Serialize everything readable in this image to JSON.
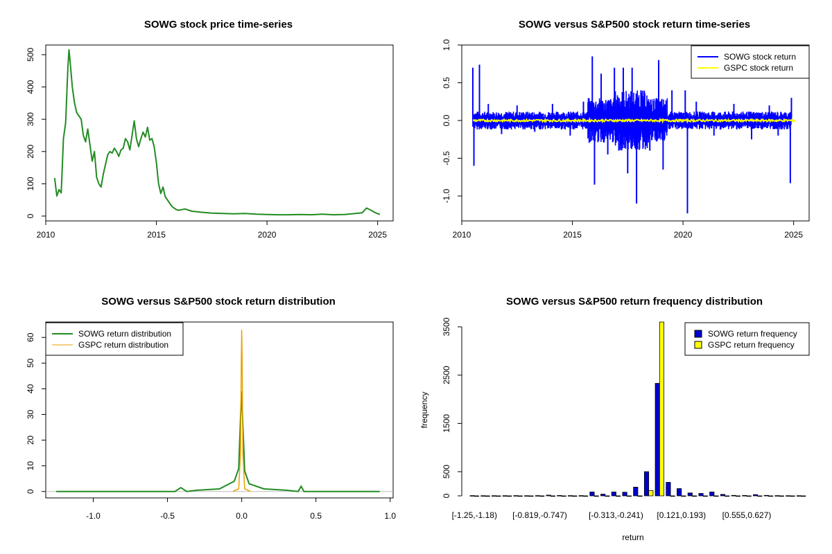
{
  "colors": {
    "sowg_price": "#228B22",
    "sowg_return": "#0000FF",
    "gspc_return": "#FFFF00",
    "sowg_density": "#228B22",
    "gspc_density": "#E6A100",
    "sowg_bar": "#0000CD",
    "gspc_bar": "#FFFF00"
  },
  "chart_data": [
    {
      "type": "line",
      "title": "SOWG stock price time-series",
      "xlabel": "",
      "ylabel": "",
      "xlim": [
        2010.0,
        2025.7
      ],
      "ylim": [
        -15,
        530
      ],
      "xticks": [
        2010,
        2015,
        2020,
        2025
      ],
      "yticks": [
        0,
        100,
        200,
        300,
        400,
        500
      ],
      "series": [
        {
          "x": [
            2010.4,
            2010.5,
            2010.6,
            2010.7,
            2010.8,
            2010.9,
            2011.0,
            2011.05,
            2011.1,
            2011.2,
            2011.3,
            2011.4,
            2011.5,
            2011.6,
            2011.7,
            2011.8,
            2011.9,
            2012.0,
            2012.1,
            2012.2,
            2012.3,
            2012.4,
            2012.5,
            2012.6,
            2012.7,
            2012.8,
            2012.9,
            2013.0,
            2013.1,
            2013.2,
            2013.3,
            2013.4,
            2013.5,
            2013.6,
            2013.7,
            2013.8,
            2013.9,
            2014.0,
            2014.1,
            2014.2,
            2014.3,
            2014.4,
            2014.5,
            2014.6,
            2014.7,
            2014.8,
            2014.9,
            2015.0,
            2015.1,
            2015.2,
            2015.3,
            2015.4,
            2015.5,
            2015.6,
            2015.7,
            2015.8,
            2015.9,
            2016.0,
            2016.3,
            2016.6,
            2017.0,
            2017.5,
            2018.0,
            2018.5,
            2019.0,
            2019.5,
            2020.0,
            2020.5,
            2021.0,
            2021.5,
            2022.0,
            2022.5,
            2023.0,
            2023.5,
            2024.0,
            2024.3,
            2024.5,
            2024.7,
            2024.9,
            2025.1
          ],
          "y": [
            118,
            62,
            82,
            72,
            240,
            290,
            460,
            515,
            480,
            400,
            350,
            320,
            310,
            300,
            250,
            230,
            270,
            220,
            170,
            200,
            120,
            100,
            90,
            130,
            160,
            190,
            200,
            195,
            210,
            200,
            185,
            205,
            210,
            240,
            230,
            205,
            250,
            295,
            240,
            215,
            240,
            260,
            245,
            275,
            235,
            240,
            215,
            165,
            100,
            70,
            90,
            60,
            50,
            40,
            30,
            25,
            20,
            18,
            22,
            15,
            12,
            9,
            8,
            7,
            8,
            6,
            5,
            4,
            4,
            5,
            4,
            6,
            4,
            5,
            8,
            10,
            25,
            18,
            10,
            5
          ]
        }
      ]
    },
    {
      "type": "line",
      "title": "SOWG versus S&P500 stock return time-series",
      "xlabel": "",
      "ylabel": "",
      "xlim": [
        2010.0,
        2025.7
      ],
      "ylim": [
        -1.33,
        1.0
      ],
      "xticks": [
        2010,
        2015,
        2020,
        2025
      ],
      "yticks": [
        -1.0,
        -0.5,
        0.0,
        0.5,
        1.0
      ],
      "ytick_labels": [
        "-1.0",
        "-0.5",
        "0.0",
        "0.5",
        "1.0"
      ],
      "legend": {
        "position": "top-right",
        "entries": [
          "SOWG stock return",
          "GSPC stock return"
        ]
      },
      "series": [
        {
          "name": "SOWG stock return",
          "x": [
            2010.5,
            2010.55,
            2010.8,
            2011.2,
            2011.8,
            2012.5,
            2013.3,
            2014.1,
            2014.9,
            2015.5,
            2015.9,
            2016.0,
            2016.3,
            2016.6,
            2016.9,
            2017.1,
            2017.3,
            2017.5,
            2017.7,
            2017.9,
            2018.1,
            2018.5,
            2018.9,
            2019.1,
            2019.5,
            2020.1,
            2020.2,
            2020.6,
            2021.4,
            2022.3,
            2023.1,
            2023.9,
            2024.3,
            2024.85,
            2024.9
          ],
          "y": [
            0.7,
            -0.6,
            0.74,
            0.22,
            -0.18,
            0.2,
            -0.15,
            0.22,
            -0.2,
            0.25,
            0.85,
            -0.85,
            0.62,
            -0.45,
            0.7,
            -0.4,
            0.7,
            -0.7,
            0.7,
            -1.1,
            0.4,
            -0.4,
            0.8,
            -0.65,
            0.4,
            0.4,
            -1.23,
            0.25,
            -0.2,
            0.22,
            -0.25,
            0.2,
            -0.2,
            -0.83,
            0.3
          ]
        },
        {
          "name": "GSPC stock return",
          "x": [
            2010.5,
            2025.1
          ],
          "y": [
            0.0,
            0.0
          ]
        }
      ]
    },
    {
      "type": "line",
      "title": "SOWG versus S&P500 stock return distribution",
      "xlabel": "",
      "ylabel": "",
      "xlim": [
        -1.32,
        1.02
      ],
      "ylim": [
        -2.5,
        66
      ],
      "xticks": [
        -1.0,
        -0.5,
        0.0,
        0.5,
        1.0
      ],
      "xtick_labels": [
        "-1.0",
        "-0.5",
        "0.0",
        "0.5",
        "1.0"
      ],
      "yticks": [
        0,
        10,
        20,
        30,
        40,
        50,
        60
      ],
      "legend": {
        "position": "top-left",
        "entries": [
          "SOWG return distribution",
          "GSPC return distribution"
        ]
      },
      "series": [
        {
          "name": "SOWG return distribution",
          "x": [
            -1.25,
            -0.45,
            -0.41,
            -0.37,
            -0.3,
            -0.15,
            -0.05,
            -0.02,
            -0.005,
            0.0,
            0.005,
            0.02,
            0.05,
            0.15,
            0.3,
            0.38,
            0.4,
            0.42,
            0.93
          ],
          "y": [
            0,
            0,
            1.5,
            0,
            0.5,
            1,
            4,
            9,
            33,
            39,
            30,
            8,
            3,
            1,
            0.5,
            0,
            2,
            0,
            0
          ]
        },
        {
          "name": "GSPC return distribution",
          "x": [
            -0.06,
            -0.02,
            -0.008,
            -0.003,
            0.0,
            0.003,
            0.008,
            0.02,
            0.06
          ],
          "y": [
            0,
            1,
            15,
            50,
            63,
            50,
            15,
            1,
            0
          ]
        }
      ]
    },
    {
      "type": "bar",
      "title": "SOWG versus S&P500 return frequency distribution",
      "xlabel": "return",
      "ylabel": "frequency",
      "ylim": [
        0,
        3600
      ],
      "yticks": [
        0,
        500,
        1500,
        2500,
        3500
      ],
      "category_labels_shown": [
        "[-1.25,-1.18)",
        "[-0.819,-0.747)",
        "[-0.313,-0.241)",
        "[0.121,0.193)",
        "[0.555,0.627)"
      ],
      "category_label_positions": [
        0,
        6,
        13,
        19,
        25
      ],
      "legend": {
        "position": "top-right",
        "entries": [
          "SOWG return frequency",
          "GSPC return frequency"
        ]
      },
      "categories_count": 31,
      "series": [
        {
          "name": "SOWG return frequency",
          "values": [
            5,
            3,
            3,
            3,
            5,
            3,
            5,
            15,
            8,
            5,
            5,
            80,
            35,
            80,
            75,
            180,
            500,
            2330,
            280,
            150,
            60,
            50,
            80,
            30,
            10,
            8,
            25,
            10,
            5,
            3,
            3
          ]
        },
        {
          "name": "GSPC return frequency",
          "values": [
            0,
            0,
            0,
            0,
            0,
            0,
            0,
            0,
            0,
            0,
            0,
            0,
            0,
            0,
            0,
            0,
            110,
            3600,
            0,
            0,
            0,
            0,
            0,
            0,
            0,
            0,
            0,
            0,
            0,
            0,
            0
          ]
        }
      ]
    }
  ]
}
